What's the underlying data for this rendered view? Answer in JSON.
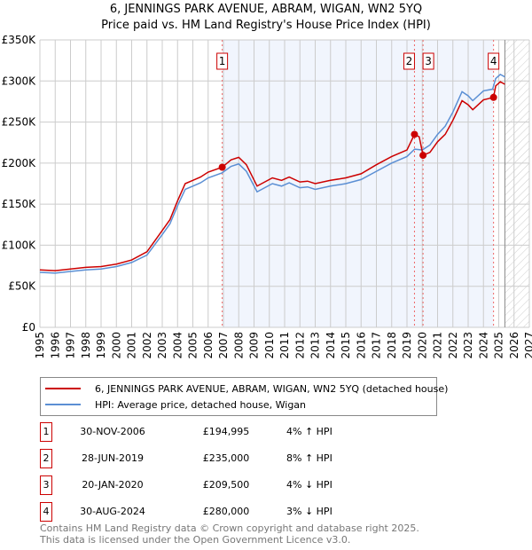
{
  "chart_data": {
    "type": "line",
    "title": "6, JENNINGS PARK AVENUE, ABRAM, WIGAN, WN2 5YQ",
    "subtitle": "Price paid vs. HM Land Registry's House Price Index (HPI)",
    "xlim": [
      1995,
      2027
    ],
    "ylim": [
      0,
      350000
    ],
    "x_ticks": [
      "1995",
      "1996",
      "1997",
      "1998",
      "1999",
      "2000",
      "2001",
      "2002",
      "2003",
      "2004",
      "2005",
      "2006",
      "2007",
      "2008",
      "2009",
      "2010",
      "2011",
      "2012",
      "2013",
      "2014",
      "2015",
      "2016",
      "2017",
      "2018",
      "2019",
      "2020",
      "2021",
      "2022",
      "2023",
      "2024",
      "2025",
      "2026",
      "2027"
    ],
    "y_ticks": [
      {
        "v": 0,
        "label": "£0"
      },
      {
        "v": 50000,
        "label": "£50K"
      },
      {
        "v": 100000,
        "label": "£100K"
      },
      {
        "v": 150000,
        "label": "£150K"
      },
      {
        "v": 200000,
        "label": "£200K"
      },
      {
        "v": 250000,
        "label": "£250K"
      },
      {
        "v": 300000,
        "label": "£300K"
      },
      {
        "v": 350000,
        "label": "£350K"
      }
    ],
    "grid": true,
    "data_end_year": 2025.4,
    "series": [
      {
        "name": "6, JENNINGS PARK AVENUE, ABRAM, WIGAN, WN2 5YQ (detached house)",
        "color": "#cc0000",
        "points": [
          [
            1995,
            70
          ],
          [
            1996,
            69
          ],
          [
            1997,
            71
          ],
          [
            1998,
            73
          ],
          [
            1999,
            74
          ],
          [
            2000,
            77
          ],
          [
            2001,
            82
          ],
          [
            2002,
            92
          ],
          [
            2003,
            118
          ],
          [
            2003.5,
            131
          ],
          [
            2004,
            154
          ],
          [
            2004.5,
            175
          ],
          [
            2005,
            179
          ],
          [
            2005.5,
            183
          ],
          [
            2006,
            189
          ],
          [
            2006.92,
            195
          ],
          [
            2007.5,
            204
          ],
          [
            2008,
            207
          ],
          [
            2008.5,
            198
          ],
          [
            2009.2,
            172
          ],
          [
            2009.7,
            177
          ],
          [
            2010.2,
            182
          ],
          [
            2010.8,
            179
          ],
          [
            2011.3,
            183
          ],
          [
            2012,
            177
          ],
          [
            2012.5,
            178
          ],
          [
            2013,
            175
          ],
          [
            2014,
            179
          ],
          [
            2015,
            182
          ],
          [
            2016,
            187
          ],
          [
            2017,
            198
          ],
          [
            2018,
            208
          ],
          [
            2019,
            216
          ],
          [
            2019.49,
            235
          ],
          [
            2019.8,
            232
          ],
          [
            2020.05,
            209.5
          ],
          [
            2020.5,
            213
          ],
          [
            2021,
            226
          ],
          [
            2021.5,
            235
          ],
          [
            2022,
            252
          ],
          [
            2022.6,
            276
          ],
          [
            2023,
            271
          ],
          [
            2023.3,
            265
          ],
          [
            2024,
            277
          ],
          [
            2024.66,
            280
          ],
          [
            2024.8,
            294
          ],
          [
            2025.1,
            299
          ],
          [
            2025.4,
            296
          ]
        ]
      },
      {
        "name": "HPI: Average price, detached house, Wigan",
        "color": "#5b8fd4",
        "points": [
          [
            1995,
            67
          ],
          [
            1996,
            66
          ],
          [
            1997,
            68
          ],
          [
            1998,
            70
          ],
          [
            1999,
            71
          ],
          [
            2000,
            74
          ],
          [
            2001,
            79
          ],
          [
            2002,
            88
          ],
          [
            2003,
            113
          ],
          [
            2003.5,
            126
          ],
          [
            2004,
            148
          ],
          [
            2004.5,
            168
          ],
          [
            2005,
            172
          ],
          [
            2005.5,
            176
          ],
          [
            2006,
            182
          ],
          [
            2006.9,
            188
          ],
          [
            2007.5,
            196
          ],
          [
            2008,
            199
          ],
          [
            2008.5,
            190
          ],
          [
            2009.2,
            165
          ],
          [
            2009.7,
            170
          ],
          [
            2010.2,
            175
          ],
          [
            2010.8,
            172
          ],
          [
            2011.3,
            176
          ],
          [
            2012,
            170
          ],
          [
            2012.5,
            171
          ],
          [
            2013,
            168
          ],
          [
            2014,
            172
          ],
          [
            2015,
            175
          ],
          [
            2016,
            180
          ],
          [
            2017,
            190
          ],
          [
            2018,
            200
          ],
          [
            2019,
            208
          ],
          [
            2019.5,
            217
          ],
          [
            2020,
            216
          ],
          [
            2020.5,
            222
          ],
          [
            2021,
            235
          ],
          [
            2021.5,
            245
          ],
          [
            2022,
            262
          ],
          [
            2022.6,
            287
          ],
          [
            2023,
            282
          ],
          [
            2023.3,
            276
          ],
          [
            2024,
            288
          ],
          [
            2024.6,
            290
          ],
          [
            2024.8,
            303
          ],
          [
            2025.1,
            308
          ],
          [
            2025.4,
            305
          ]
        ]
      }
    ],
    "sales": [
      {
        "n": "1",
        "year": 2006.92,
        "value": 194995
      },
      {
        "n": "2",
        "year": 2019.49,
        "value": 235000
      },
      {
        "n": "3",
        "year": 2020.05,
        "value": 209500
      },
      {
        "n": "4",
        "year": 2024.66,
        "value": 280000
      }
    ]
  },
  "legend": {
    "property": "6, JENNINGS PARK AVENUE, ABRAM, WIGAN, WN2 5YQ (detached house)",
    "hpi": "HPI: Average price, detached house, Wigan"
  },
  "transactions": [
    {
      "n": "1",
      "date": "30-NOV-2006",
      "price": "£194,995",
      "hpi": "4% ↑ HPI"
    },
    {
      "n": "2",
      "date": "28-JUN-2019",
      "price": "£235,000",
      "hpi": "8% ↑ HPI"
    },
    {
      "n": "3",
      "date": "20-JAN-2020",
      "price": "£209,500",
      "hpi": "4% ↓ HPI"
    },
    {
      "n": "4",
      "date": "30-AUG-2024",
      "price": "£280,000",
      "hpi": "3% ↓ HPI"
    }
  ],
  "footer": {
    "line1": "Contains HM Land Registry data © Crown copyright and database right 2025.",
    "line2": "This data is licensed under the Open Government Licence v3.0."
  }
}
